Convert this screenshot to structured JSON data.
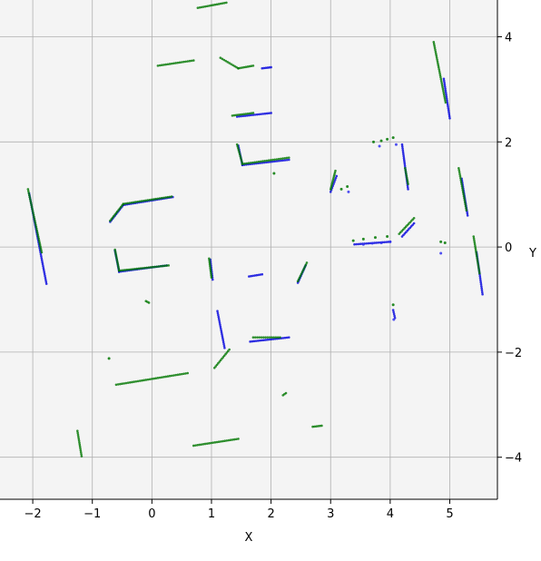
{
  "chart_data": {
    "type": "scatter",
    "title": "",
    "xlabel": "X",
    "ylabel": "Y",
    "xlim": [
      -2.55,
      5.8
    ],
    "ylim": [
      -4.8,
      4.7
    ],
    "x_ticks": [
      -2,
      -1,
      0,
      1,
      2,
      3,
      4,
      5
    ],
    "y_ticks": [
      -4,
      -2,
      0,
      2,
      4
    ],
    "x_tick_labels": [
      "−2",
      "−1",
      "0",
      "1",
      "2",
      "3",
      "4",
      "5"
    ],
    "y_tick_labels": [
      "−4",
      "−2",
      "0",
      "2",
      "4"
    ],
    "grid": true,
    "background": "#f4f4f4",
    "series": [
      {
        "color": "#0000dd",
        "segments": [
          [
            [
              -2.06,
              1.02
            ],
            [
              -1.77,
              -0.7
            ]
          ],
          [
            [
              -0.62,
              -0.07
            ],
            [
              -0.55,
              -0.47
            ]
          ],
          [
            [
              -0.55,
              -0.47
            ],
            [
              0.25,
              -0.35
            ]
          ],
          [
            [
              -0.7,
              0.48
            ],
            [
              -0.48,
              0.8
            ]
          ],
          [
            [
              -0.48,
              0.8
            ],
            [
              0.35,
              0.95
            ]
          ],
          [
            [
              0.98,
              -0.24
            ],
            [
              1.02,
              -0.62
            ]
          ],
          [
            [
              1.63,
              -0.56
            ],
            [
              1.85,
              -0.52
            ]
          ],
          [
            [
              1.1,
              -1.22
            ],
            [
              1.22,
              -1.92
            ]
          ],
          [
            [
              1.65,
              -1.8
            ],
            [
              2.3,
              -1.72
            ]
          ],
          [
            [
              2.45,
              -0.68
            ],
            [
              2.58,
              -0.35
            ]
          ],
          [
            [
              1.45,
              1.93
            ],
            [
              1.52,
              1.56
            ]
          ],
          [
            [
              1.52,
              1.56
            ],
            [
              2.3,
              1.66
            ]
          ],
          [
            [
              1.43,
              2.48
            ],
            [
              2.0,
              2.55
            ]
          ],
          [
            [
              1.85,
              3.4
            ],
            [
              2.0,
              3.42
            ]
          ],
          [
            [
              3.0,
              1.05
            ],
            [
              3.1,
              1.35
            ]
          ],
          [
            [
              3.4,
              0.05
            ],
            [
              4.0,
              0.1
            ]
          ],
          [
            [
              4.2,
              0.2
            ],
            [
              4.4,
              0.45
            ]
          ],
          [
            [
              4.2,
              1.95
            ],
            [
              4.3,
              1.1
            ]
          ],
          [
            [
              4.05,
              -1.2
            ],
            [
              4.08,
              -1.35
            ]
          ],
          [
            [
              4.9,
              3.2
            ],
            [
              5.0,
              2.45
            ]
          ],
          [
            [
              5.2,
              1.3
            ],
            [
              5.3,
              0.6
            ]
          ],
          [
            [
              5.45,
              -0.1
            ],
            [
              5.55,
              -0.9
            ]
          ]
        ]
      },
      {
        "color": "#007700",
        "segments": [
          [
            [
              -2.08,
              1.1
            ],
            [
              -1.85,
              -0.1
            ]
          ],
          [
            [
              -0.62,
              -0.05
            ],
            [
              -0.55,
              -0.45
            ]
          ],
          [
            [
              -0.55,
              -0.45
            ],
            [
              0.28,
              -0.35
            ]
          ],
          [
            [
              -0.7,
              0.5
            ],
            [
              -0.48,
              0.82
            ]
          ],
          [
            [
              -0.48,
              0.82
            ],
            [
              0.33,
              0.96
            ]
          ],
          [
            [
              0.96,
              -0.22
            ],
            [
              1.0,
              -0.58
            ]
          ],
          [
            [
              1.05,
              -2.3
            ],
            [
              1.3,
              -1.95
            ]
          ],
          [
            [
              -0.6,
              -2.62
            ],
            [
              0.6,
              -2.4
            ]
          ],
          [
            [
              0.7,
              -3.78
            ],
            [
              1.45,
              -3.65
            ]
          ],
          [
            [
              -1.25,
              -3.5
            ],
            [
              -1.18,
              -3.98
            ]
          ],
          [
            [
              2.45,
              -0.65
            ],
            [
              2.6,
              -0.3
            ]
          ],
          [
            [
              2.2,
              -2.82
            ],
            [
              2.25,
              -2.78
            ]
          ],
          [
            [
              2.7,
              -3.42
            ],
            [
              2.85,
              -3.4
            ]
          ],
          [
            [
              -0.1,
              -1.03
            ],
            [
              -0.05,
              -1.06
            ]
          ],
          [
            [
              1.7,
              -1.72
            ],
            [
              2.15,
              -1.72
            ]
          ],
          [
            [
              1.43,
              1.95
            ],
            [
              1.52,
              1.58
            ]
          ],
          [
            [
              1.52,
              1.58
            ],
            [
              2.3,
              1.7
            ]
          ],
          [
            [
              1.35,
              2.5
            ],
            [
              1.7,
              2.55
            ]
          ],
          [
            [
              0.1,
              3.45
            ],
            [
              0.7,
              3.55
            ]
          ],
          [
            [
              1.15,
              3.6
            ],
            [
              1.45,
              3.4
            ]
          ],
          [
            [
              1.45,
              3.4
            ],
            [
              1.7,
              3.45
            ]
          ],
          [
            [
              0.77,
              4.55
            ],
            [
              1.25,
              4.65
            ]
          ],
          [
            [
              3.0,
              1.1
            ],
            [
              3.08,
              1.45
            ]
          ],
          [
            [
              4.15,
              0.25
            ],
            [
              4.4,
              0.55
            ]
          ],
          [
            [
              4.25,
              1.5
            ],
            [
              4.3,
              1.2
            ]
          ],
          [
            [
              4.73,
              3.9
            ],
            [
              4.93,
              2.75
            ]
          ],
          [
            [
              5.15,
              1.5
            ],
            [
              5.28,
              0.7
            ]
          ],
          [
            [
              5.4,
              0.2
            ],
            [
              5.5,
              -0.5
            ]
          ]
        ],
        "points": [
          [
            3.18,
            1.1
          ],
          [
            3.28,
            1.15
          ],
          [
            3.38,
            0.12
          ],
          [
            3.55,
            0.15
          ],
          [
            3.75,
            0.18
          ],
          [
            3.95,
            0.2
          ],
          [
            3.72,
            2.0
          ],
          [
            3.85,
            2.02
          ],
          [
            3.95,
            2.05
          ],
          [
            4.05,
            2.08
          ],
          [
            4.85,
            0.1
          ],
          [
            4.92,
            0.08
          ],
          [
            4.05,
            -1.1
          ],
          [
            -0.72,
            -2.12
          ],
          [
            2.05,
            1.4
          ]
        ]
      },
      {
        "color": "#3333ee",
        "points": [
          [
            3.3,
            1.05
          ],
          [
            3.55,
            0.05
          ],
          [
            3.7,
            0.07
          ],
          [
            3.85,
            0.08
          ],
          [
            4.0,
            0.1
          ],
          [
            3.82,
            1.92
          ],
          [
            4.1,
            1.95
          ],
          [
            4.85,
            -0.12
          ],
          [
            4.06,
            -1.38
          ]
        ]
      }
    ]
  }
}
